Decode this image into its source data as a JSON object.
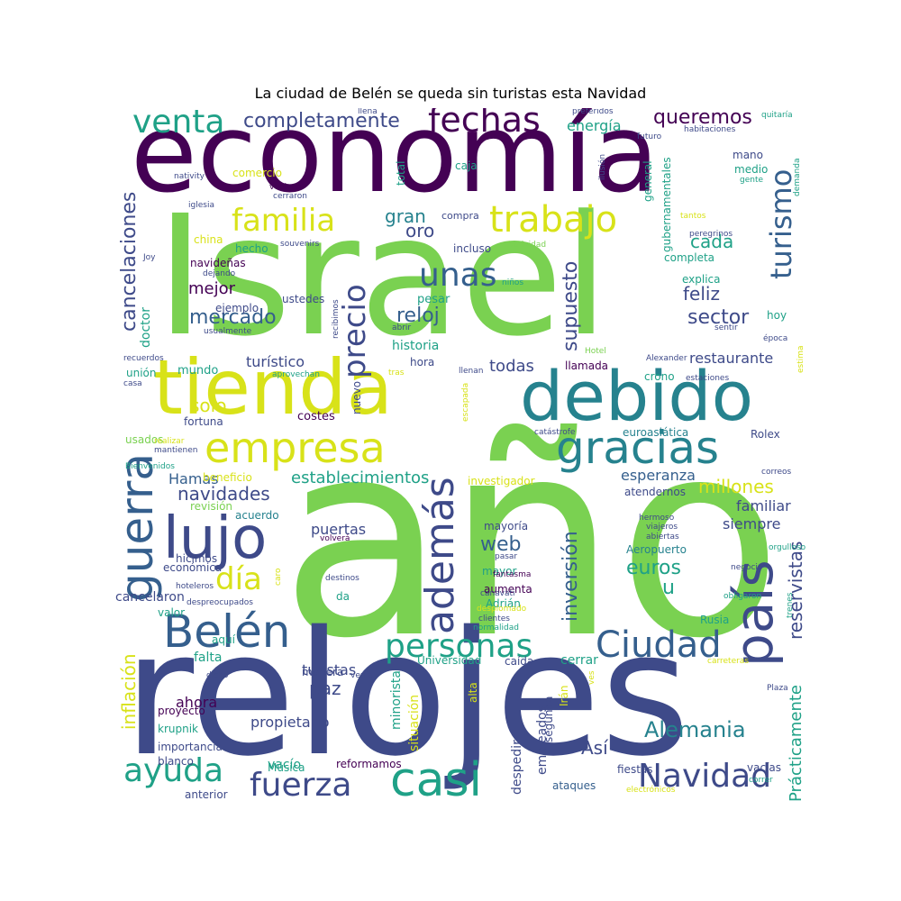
{
  "title": "La ciudad de Belén se queda sin turistas esta Navidad",
  "palette": {
    "dark_purple": "#440154",
    "indigo": "#3e4a89",
    "slate": "#355f8d",
    "teal": "#26828e",
    "green_teal": "#1fa187",
    "green": "#7ad151",
    "yellow": "#d8e219"
  },
  "words": [
    {
      "text": "año",
      "color": "#7ad151"
    },
    {
      "text": "Israel",
      "color": "#7ad151"
    },
    {
      "text": "relojes",
      "color": "#3e4a89"
    },
    {
      "text": "economía",
      "color": "#440154"
    },
    {
      "text": "tienda",
      "color": "#d8e219"
    },
    {
      "text": "debido",
      "color": "#26828e"
    },
    {
      "text": "casi",
      "color": "#1fa187"
    },
    {
      "text": "gracias",
      "color": "#26828e"
    },
    {
      "text": "empresa",
      "color": "#d8e219"
    },
    {
      "text": "Belén",
      "color": "#355f8d"
    },
    {
      "text": "lujo",
      "color": "#3e4a89"
    },
    {
      "text": "guerra",
      "color": "#355f8d"
    },
    {
      "text": "país",
      "color": "#3e4a89"
    },
    {
      "text": "además",
      "color": "#3e4a89"
    },
    {
      "text": "trabajo",
      "color": "#d8e219"
    },
    {
      "text": "fechas",
      "color": "#440154"
    },
    {
      "text": "venta",
      "color": "#1fa187"
    },
    {
      "text": "familia",
      "color": "#d8e219"
    },
    {
      "text": "precio",
      "color": "#3e4a89"
    },
    {
      "text": "turismo",
      "color": "#355f8d"
    },
    {
      "text": "Ciudad",
      "color": "#355f8d"
    },
    {
      "text": "personas",
      "color": "#1fa187"
    },
    {
      "text": "Navidad",
      "color": "#3e4a89"
    },
    {
      "text": "ayuda",
      "color": "#1fa187"
    },
    {
      "text": "fuerza",
      "color": "#3e4a89"
    },
    {
      "text": "unas",
      "color": "#355f8d"
    },
    {
      "text": "día",
      "color": "#d8e219"
    },
    {
      "text": "completamente",
      "color": "#3e4a89"
    },
    {
      "text": "queremos",
      "color": "#440154"
    },
    {
      "text": "mercado",
      "color": "#355f8d"
    },
    {
      "text": "reloj",
      "color": "#355f8d"
    },
    {
      "text": "supuesto",
      "color": "#3e4a89"
    },
    {
      "text": "sector",
      "color": "#3e4a89"
    },
    {
      "text": "cancelaciones",
      "color": "#3e4a89"
    },
    {
      "text": "Alemania",
      "color": "#26828e"
    },
    {
      "text": "inversión",
      "color": "#355f8d"
    },
    {
      "text": "reservistas",
      "color": "#3e4a89"
    },
    {
      "text": "navidades",
      "color": "#3e4a89"
    },
    {
      "text": "establecimientos",
      "color": "#1fa187"
    },
    {
      "text": "millones",
      "color": "#d8e219"
    },
    {
      "text": "euros",
      "color": "#1fa187"
    },
    {
      "text": "inflación",
      "color": "#d8e219"
    },
    {
      "text": "Prácticamente",
      "color": "#1fa187"
    },
    {
      "text": "solo",
      "color": "#d8e219"
    },
    {
      "text": "gran",
      "color": "#26828e"
    },
    {
      "text": "oro",
      "color": "#3e4a89"
    },
    {
      "text": "cada",
      "color": "#1fa187"
    },
    {
      "text": "feliz",
      "color": "#3e4a89"
    },
    {
      "text": "mejor",
      "color": "#440154"
    },
    {
      "text": "web",
      "color": "#355f8d"
    },
    {
      "text": "u",
      "color": "#1fa187"
    },
    {
      "text": "Así",
      "color": "#3e4a89"
    },
    {
      "text": "paz",
      "color": "#3e4a89"
    },
    {
      "text": "todas",
      "color": "#3e4a89"
    },
    {
      "text": "restaurante",
      "color": "#3e4a89"
    },
    {
      "text": "turístico",
      "color": "#3e4a89"
    },
    {
      "text": "esperanza",
      "color": "#355f8d"
    },
    {
      "text": "familiar",
      "color": "#3e4a89"
    },
    {
      "text": "siempre",
      "color": "#3e4a89"
    },
    {
      "text": "Hamas",
      "color": "#355f8d"
    },
    {
      "text": "puertas",
      "color": "#3e4a89"
    },
    {
      "text": "turistas",
      "color": "#3e4a89"
    },
    {
      "text": "ahora",
      "color": "#440154"
    },
    {
      "text": "propietario",
      "color": "#3e4a89"
    },
    {
      "text": "energía",
      "color": "#1fa187"
    },
    {
      "text": "historia",
      "color": "#1fa187"
    },
    {
      "text": "cancelaron",
      "color": "#3e4a89"
    },
    {
      "text": "falta",
      "color": "#1fa187"
    },
    {
      "text": "vacío",
      "color": "#1fa187"
    },
    {
      "text": "despedir",
      "color": "#3e4a89"
    },
    {
      "text": "empleados",
      "color": "#3e4a89"
    },
    {
      "text": "situación",
      "color": "#d8e219"
    },
    {
      "text": "minorista",
      "color": "#1fa187"
    },
    {
      "text": "cerrar",
      "color": "#1fa187"
    },
    {
      "text": "doctor",
      "color": "#1fa187"
    },
    {
      "text": "pesar",
      "color": "#1fa187"
    },
    {
      "text": "mundo",
      "color": "#1fa187"
    },
    {
      "text": "costes",
      "color": "#440154"
    },
    {
      "text": "fortuna",
      "color": "#3e4a89"
    },
    {
      "text": "nuevo",
      "color": "#3e4a89"
    },
    {
      "text": "mayor",
      "color": "#1fa187"
    },
    {
      "text": "aumenta",
      "color": "#440154"
    },
    {
      "text": "Adrián",
      "color": "#1fa187"
    },
    {
      "text": "mayoría",
      "color": "#3e4a89"
    },
    {
      "text": "Aeropuerto",
      "color": "#26828e"
    },
    {
      "text": "investigador",
      "color": "#d8e219"
    },
    {
      "text": "atendernos",
      "color": "#3e4a89"
    },
    {
      "text": "euroasiática",
      "color": "#26828e"
    },
    {
      "text": "Rolex",
      "color": "#3e4a89"
    },
    {
      "text": "llamada",
      "color": "#440154"
    },
    {
      "text": "crono",
      "color": "#1fa187"
    },
    {
      "text": "hora",
      "color": "#3e4a89"
    },
    {
      "text": "usados",
      "color": "#7ad151"
    },
    {
      "text": "unión",
      "color": "#1fa187"
    },
    {
      "text": "beneficio",
      "color": "#d8e219"
    },
    {
      "text": "revisión",
      "color": "#7ad151"
    },
    {
      "text": "acuerdo",
      "color": "#26828e"
    },
    {
      "text": "hicimos",
      "color": "#3e4a89"
    },
    {
      "text": "económica",
      "color": "#3e4a89"
    },
    {
      "text": "valor",
      "color": "#1fa187"
    },
    {
      "text": "aquí",
      "color": "#1fa187"
    },
    {
      "text": "manera",
      "color": "#3e4a89"
    },
    {
      "text": "proyecto",
      "color": "#440154"
    },
    {
      "text": "krupnik",
      "color": "#1fa187"
    },
    {
      "text": "importancia",
      "color": "#3e4a89"
    },
    {
      "text": "blanco",
      "color": "#3e4a89"
    },
    {
      "text": "anterior",
      "color": "#3e4a89"
    },
    {
      "text": "Música",
      "color": "#1fa187"
    },
    {
      "text": "reformamos",
      "color": "#440154"
    },
    {
      "text": "ataques",
      "color": "#355f8d"
    },
    {
      "text": "fiestas",
      "color": "#3e4a89"
    },
    {
      "text": "vacías",
      "color": "#3e4a89"
    },
    {
      "text": "correr",
      "color": "#1fa187"
    },
    {
      "text": "electrónicos",
      "color": "#d8e219"
    },
    {
      "text": "Universidad",
      "color": "#1fa187"
    },
    {
      "text": "caída",
      "color": "#3e4a89"
    },
    {
      "text": "Irán",
      "color": "#d8e219"
    },
    {
      "text": "segunda",
      "color": "#3e4a89"
    },
    {
      "text": "alta",
      "color": "#d8e219"
    },
    {
      "text": "ves",
      "color": "#d8e219"
    },
    {
      "text": "Rusia",
      "color": "#1fa187"
    },
    {
      "text": "obligaron",
      "color": "#1fa187"
    },
    {
      "text": "trenes",
      "color": "#1fa187"
    },
    {
      "text": "negocio",
      "color": "#3e4a89"
    },
    {
      "text": "carreteras",
      "color": "#d8e219"
    },
    {
      "text": "Plaza",
      "color": "#3e4a89"
    },
    {
      "text": "orgulloso",
      "color": "#1fa187"
    },
    {
      "text": "abiertas",
      "color": "#3e4a89"
    },
    {
      "text": "viajeros",
      "color": "#3e4a89"
    },
    {
      "text": "hermoso",
      "color": "#3e4a89"
    },
    {
      "text": "correos",
      "color": "#3e4a89"
    },
    {
      "text": "catástrofe",
      "color": "#3e4a89"
    },
    {
      "text": "escapada",
      "color": "#d8e219"
    },
    {
      "text": "llenan",
      "color": "#3e4a89"
    },
    {
      "text": "tras",
      "color": "#d8e219"
    },
    {
      "text": "aprovechan",
      "color": "#1fa187"
    },
    {
      "text": "recuerdos",
      "color": "#3e4a89"
    },
    {
      "text": "casa",
      "color": "#3e4a89"
    },
    {
      "text": "Bienvenidos",
      "color": "#1fa187"
    },
    {
      "text": "realizar",
      "color": "#d8e219"
    },
    {
      "text": "mantienen",
      "color": "#3e4a89"
    },
    {
      "text": "dicho",
      "color": "#3e4a89"
    },
    {
      "text": "venía",
      "color": "#3e4a89"
    },
    {
      "text": "hoteleros",
      "color": "#3e4a89"
    },
    {
      "text": "despreocupados",
      "color": "#3e4a89"
    },
    {
      "text": "destinos",
      "color": "#3e4a89"
    },
    {
      "text": "caro",
      "color": "#d8e219"
    },
    {
      "text": "da",
      "color": "#1fa187"
    },
    {
      "text": "volverá",
      "color": "#440154"
    },
    {
      "text": "pasar",
      "color": "#3e4a89"
    },
    {
      "text": "canavati",
      "color": "#3e4a89"
    },
    {
      "text": "fantasma",
      "color": "#440154"
    },
    {
      "text": "desplomado",
      "color": "#d8e219"
    },
    {
      "text": "clientes",
      "color": "#3e4a89"
    },
    {
      "text": "normalidad",
      "color": "#1fa187"
    },
    {
      "text": "Alexander",
      "color": "#3e4a89"
    },
    {
      "text": "estaciones",
      "color": "#3e4a89"
    },
    {
      "text": "estima",
      "color": "#d8e219"
    },
    {
      "text": "Hotel",
      "color": "#7ad151"
    },
    {
      "text": "sentir",
      "color": "#3e4a89"
    },
    {
      "text": "época",
      "color": "#3e4a89"
    },
    {
      "text": "hoy",
      "color": "#1fa187"
    },
    {
      "text": "explica",
      "color": "#1fa187"
    },
    {
      "text": "completa",
      "color": "#1fa187"
    },
    {
      "text": "tantos",
      "color": "#d8e219"
    },
    {
      "text": "peregrinos",
      "color": "#3e4a89"
    },
    {
      "text": "gubernamentales",
      "color": "#1fa187"
    },
    {
      "text": "general",
      "color": "#1fa187"
    },
    {
      "text": "mano",
      "color": "#3e4a89"
    },
    {
      "text": "medio",
      "color": "#1fa187"
    },
    {
      "text": "gente",
      "color": "#1fa187"
    },
    {
      "text": "demanda",
      "color": "#1fa187"
    },
    {
      "text": "habitaciones",
      "color": "#3e4a89"
    },
    {
      "text": "futuro",
      "color": "#3e4a89"
    },
    {
      "text": "ilusión",
      "color": "#3e4a89"
    },
    {
      "text": "preferidos",
      "color": "#3e4a89"
    },
    {
      "text": "quitaría",
      "color": "#1fa187"
    },
    {
      "text": "llena",
      "color": "#3e4a89"
    },
    {
      "text": "cerraron",
      "color": "#3e4a89"
    },
    {
      "text": "total",
      "color": "#1fa187"
    },
    {
      "text": "caja",
      "color": "#1fa187"
    },
    {
      "text": "comercio",
      "color": "#d8e219"
    },
    {
      "text": "nativity",
      "color": "#3e4a89"
    },
    {
      "text": "vuelven",
      "color": "#440154"
    },
    {
      "text": "iglesia",
      "color": "#3e4a89"
    },
    {
      "text": "compra",
      "color": "#3e4a89"
    },
    {
      "text": "Joy",
      "color": "#3e4a89"
    },
    {
      "text": "china",
      "color": "#d8e219"
    },
    {
      "text": "hecho",
      "color": "#1fa187"
    },
    {
      "text": "souvenirs",
      "color": "#3e4a89"
    },
    {
      "text": "incluso",
      "color": "#3e4a89"
    },
    {
      "text": "Natividad",
      "color": "#7ad151"
    },
    {
      "text": "navideñas",
      "color": "#440154"
    },
    {
      "text": "dejando",
      "color": "#3e4a89"
    },
    {
      "text": "ustedes",
      "color": "#3e4a89"
    },
    {
      "text": "ejemplo",
      "color": "#3e4a89"
    },
    {
      "text": "usualmente",
      "color": "#3e4a89"
    },
    {
      "text": "recibimos",
      "color": "#3e4a89"
    },
    {
      "text": "abrir",
      "color": "#3e4a89"
    },
    {
      "text": "niños",
      "color": "#1fa187"
    }
  ]
}
